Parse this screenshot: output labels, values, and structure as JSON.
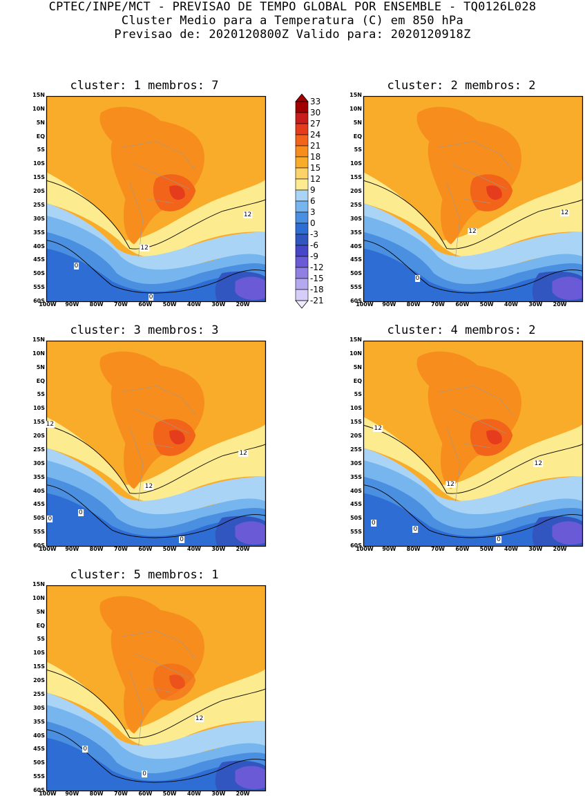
{
  "header": {
    "line1": "CPTEC/INPE/MCT - PREVISAO DE TEMPO GLOBAL POR ENSEMBLE - TQ0126L028",
    "line2": "Cluster Medio para a Temperatura (C) em 850 hPa",
    "line3": "Previsao de: 2020120800Z   Valido para: 2020120918Z"
  },
  "latitude_labels": [
    "15N",
    "10N",
    "5N",
    "EQ",
    "5S",
    "10S",
    "15S",
    "20S",
    "25S",
    "30S",
    "35S",
    "40S",
    "45S",
    "50S",
    "55S",
    "60S"
  ],
  "longitude_labels": [
    "100W",
    "90W",
    "80W",
    "70W",
    "60W",
    "50W",
    "40W",
    "30W",
    "20W"
  ],
  "colorbar": {
    "ticks": [
      "33",
      "30",
      "27",
      "24",
      "21",
      "18",
      "15",
      "12",
      "9",
      "6",
      "3",
      "0",
      "-3",
      "-6",
      "-9",
      "-12",
      "-15",
      "-18",
      "-21"
    ],
    "colors": [
      "#a00000",
      "#c81d1d",
      "#e63c1e",
      "#f26419",
      "#f78d1d",
      "#f9ab2a",
      "#fcd36b",
      "#fdeb8f",
      "#a9d4f5",
      "#76b5ee",
      "#4a8fe0",
      "#2e6ed4",
      "#3256c0",
      "#4646c8",
      "#6a5ad6",
      "#9080e2",
      "#b4a8ee",
      "#d6cef8"
    ],
    "top_triangle_color": "#a00000",
    "bottom_triangle_color": "#f0eafc"
  },
  "panels": [
    {
      "title": "cluster: 1   membros: 7",
      "labels": [
        {
          "t": "12"
        },
        {
          "t": "12"
        },
        {
          "t": "0"
        },
        {
          "t": "0"
        }
      ]
    },
    {
      "title": "cluster: 2   membros: 2",
      "labels": [
        {
          "t": "12"
        },
        {
          "t": "12"
        },
        {
          "t": "0"
        }
      ]
    },
    {
      "title": "cluster: 3   membros: 3",
      "labels": [
        {
          "t": "12"
        },
        {
          "t": "12"
        },
        {
          "t": "12"
        },
        {
          "t": "0"
        },
        {
          "t": "0"
        },
        {
          "t": "0"
        }
      ]
    },
    {
      "title": "cluster: 4   membros: 2",
      "labels": [
        {
          "t": "12"
        },
        {
          "t": "12"
        },
        {
          "t": "12"
        },
        {
          "t": "0"
        },
        {
          "t": "0"
        },
        {
          "t": "0"
        }
      ]
    },
    {
      "title": "cluster: 5   membros: 1",
      "labels": [
        {
          "t": "12"
        },
        {
          "t": "0"
        },
        {
          "t": "0"
        }
      ]
    }
  ]
}
